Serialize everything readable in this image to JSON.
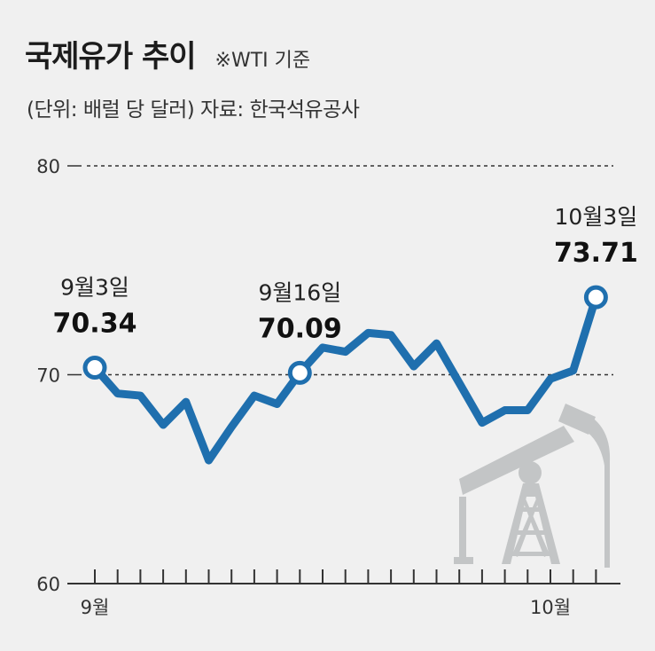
{
  "header": {
    "title": "국제유가 추이",
    "basis": "※WTI 기준",
    "subtitle": "(단위: 배럴 당 달러) 자료: 한국석유공사"
  },
  "colors": {
    "line": "#1f6fae",
    "grid": "#333333",
    "background": "#f0f0f0",
    "pump": "#c3c5c6"
  },
  "illustration": "oil-pump-jack-icon",
  "chart_data": {
    "type": "line",
    "title": "국제유가 추이",
    "ylim": [
      60,
      80
    ],
    "y_ticks": [
      "80",
      "70",
      "60"
    ],
    "x_tick_labels": [
      {
        "index": 0,
        "label": "9월"
      },
      {
        "index": 20,
        "label": "10월"
      }
    ],
    "grid": "dashed horizontal at 80 and 70",
    "series": [
      {
        "values": [
          70.34,
          69.1,
          69.0,
          67.6,
          68.7,
          65.9,
          67.5,
          69.0,
          68.6,
          70.09,
          71.3,
          71.1,
          72.0,
          71.9,
          70.4,
          71.5,
          69.6,
          67.7,
          68.3,
          68.3,
          69.8,
          70.2,
          73.71
        ]
      }
    ],
    "annotations": [
      {
        "index": 0,
        "date": "9월3일",
        "value": "70.34"
      },
      {
        "index": 9,
        "date": "9월16일",
        "value": "70.09"
      },
      {
        "index": 22,
        "date": "10월3일",
        "value": "73.71"
      }
    ]
  }
}
